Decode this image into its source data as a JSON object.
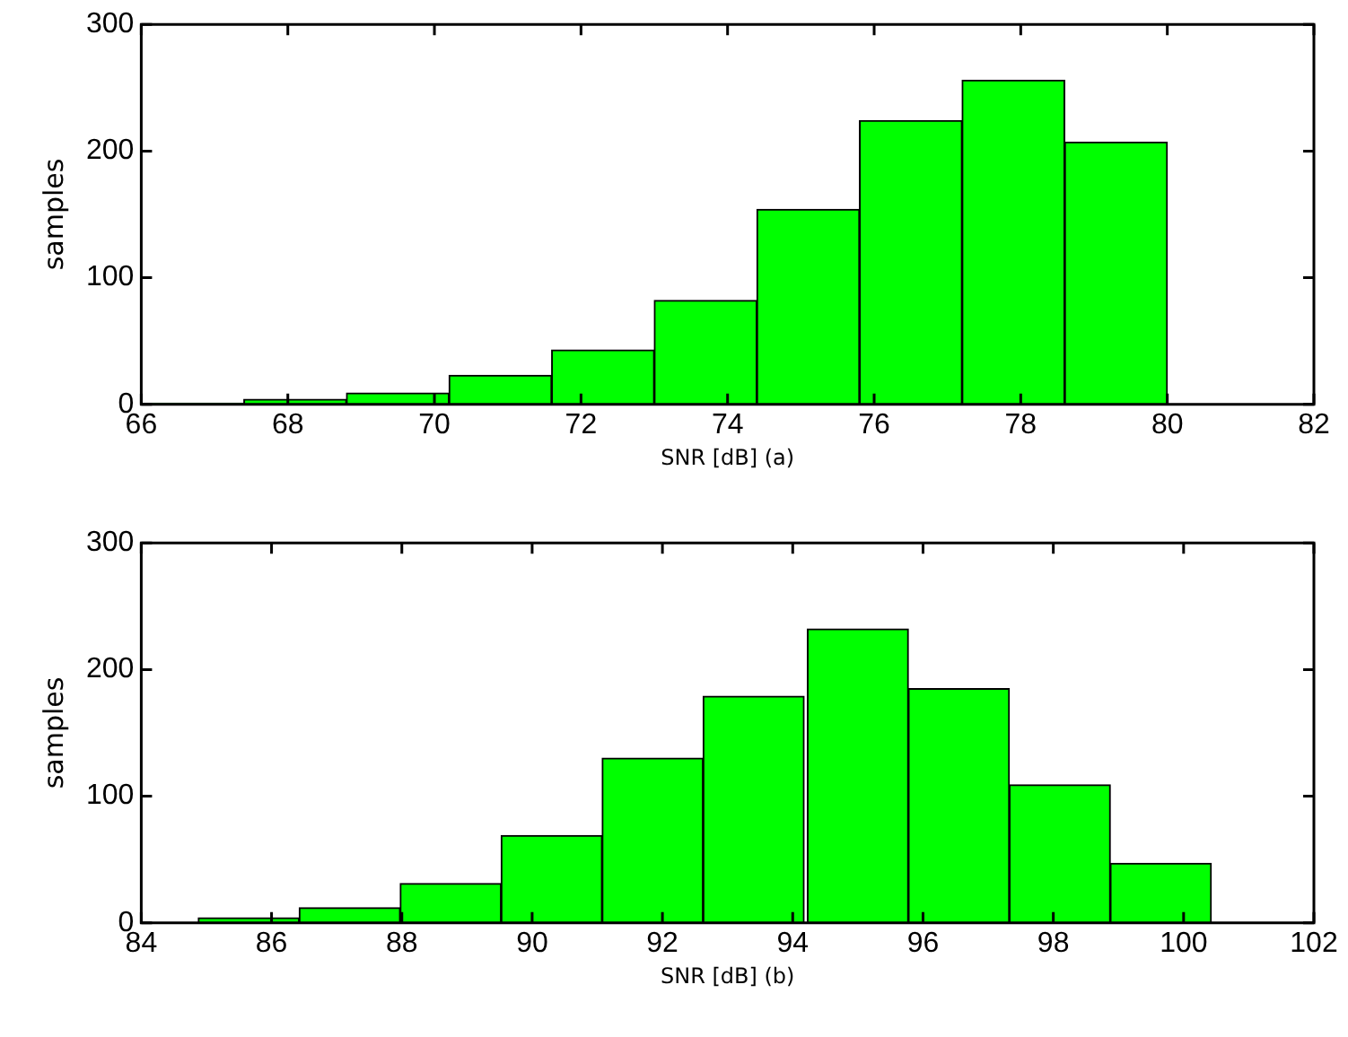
{
  "chart_data": [
    {
      "type": "histogram",
      "xlabel": "SNR [dB] (a)",
      "ylabel": "samples",
      "color": "#00ff00",
      "bins": [
        66,
        67.4,
        68.8,
        70.2,
        71.6,
        73,
        74.4,
        75.8,
        77.2,
        78.6,
        80
      ],
      "values": [
        1,
        4,
        9,
        23,
        43,
        82,
        154,
        224,
        256,
        207
      ],
      "xlim": [
        66,
        82
      ],
      "xticks": [
        66,
        68,
        70,
        72,
        74,
        76,
        78,
        80,
        82
      ],
      "ylim": [
        0,
        300
      ],
      "yticks": [
        0,
        100,
        200,
        300
      ]
    },
    {
      "type": "histogram",
      "xlabel": "SNR [dB] (b)",
      "ylabel": "samples",
      "color": "#00ff00",
      "bins": [
        84.9,
        86.4,
        88.0,
        89.5,
        91.1,
        92.6,
        94.2,
        95.8,
        97.3,
        98.9,
        100.4
      ],
      "values": [
        4,
        12,
        31,
        69,
        130,
        179,
        232,
        185,
        109,
        47
      ],
      "xlim": [
        84,
        102
      ],
      "xticks": [
        84,
        86,
        88,
        90,
        92,
        94,
        96,
        98,
        100,
        102
      ],
      "ylim": [
        0,
        300
      ],
      "yticks": [
        0,
        100,
        200,
        300
      ]
    }
  ]
}
